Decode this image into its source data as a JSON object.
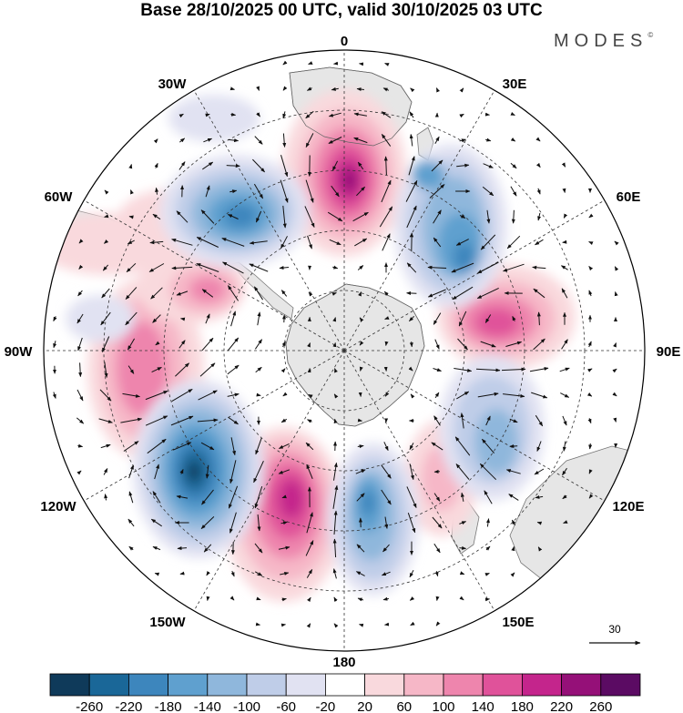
{
  "title": "Base 28/10/2025 00 UTC, valid 30/10/2025 03 UTC",
  "brand": {
    "name": "MODES",
    "mark": "©"
  },
  "longitude_labels": [
    "0",
    "30E",
    "60E",
    "90E",
    "120E",
    "150E",
    "180",
    "150W",
    "120W",
    "90W",
    "60W",
    "30W"
  ],
  "vector_reference": {
    "value": "30"
  },
  "colorbar": {
    "ticks": [
      "-260",
      "-220",
      "-180",
      "-140",
      "-100",
      "-60",
      "-20",
      "20",
      "60",
      "100",
      "140",
      "180",
      "220",
      "260"
    ],
    "colors": [
      "#0f3a5a",
      "#1a6798",
      "#3d86bd",
      "#5fa0cf",
      "#8fb7dc",
      "#bfcde8",
      "#e1e2f2",
      "#ffffff",
      "#f9d9dd",
      "#f6b7c7",
      "#ee85ad",
      "#e0529a",
      "#c4258c",
      "#951078",
      "#5b0b63"
    ]
  },
  "colors": {
    "grid": "#333333",
    "land": "#e6e6e6",
    "vector": "#111111"
  }
}
